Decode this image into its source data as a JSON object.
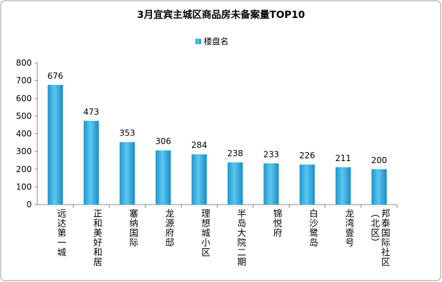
{
  "chart_data": {
    "type": "bar",
    "title": "3月宜宾主城区商品房未备案量TOP10",
    "categories": [
      "远达第一城",
      "正和美好和居",
      "塞纳国际",
      "龙源府邸",
      "理想城小区",
      "半岛大院二期",
      "锦悦府",
      "白沙鹭岛",
      "龙湾壹号",
      "邦泰国际社区（北区）"
    ],
    "series": [
      {
        "name": "楼盘名",
        "color": "#2fb0e3",
        "values": [
          676,
          473,
          353,
          306,
          284,
          238,
          233,
          226,
          211,
          200
        ]
      }
    ],
    "ylim": [
      0,
      800
    ],
    "yticks": [
      0,
      100,
      200,
      300,
      400,
      500,
      600,
      700,
      800
    ],
    "legend": "top"
  }
}
